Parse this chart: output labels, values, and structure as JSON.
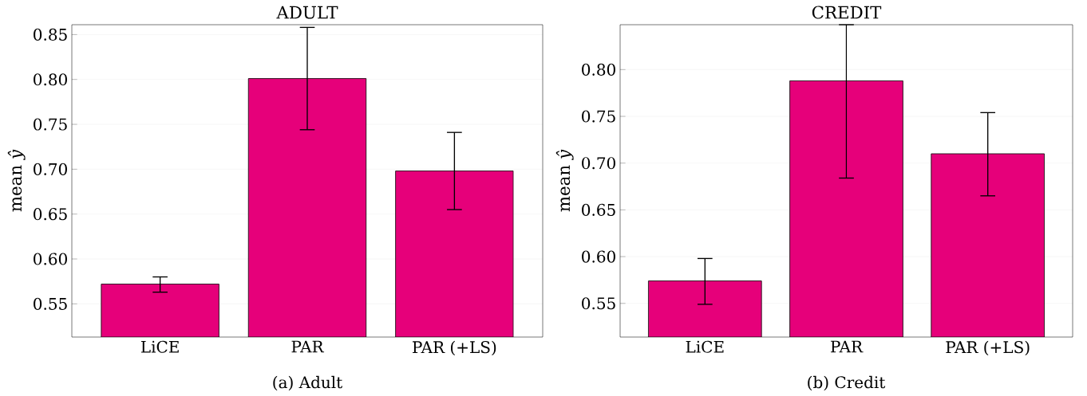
{
  "chart_data": [
    {
      "type": "bar",
      "title": "ADULT",
      "ylabel": "mean *ŷ*",
      "categories": [
        "LiCE",
        "PAR",
        "PAR (+LS)"
      ],
      "values": [
        0.572,
        0.801,
        0.698
      ],
      "errors": [
        [
          0.563,
          0.58
        ],
        [
          0.744,
          0.858
        ],
        [
          0.655,
          0.741
        ]
      ],
      "color": "#e6007a",
      "ylim": [
        0.513,
        0.861
      ],
      "yticks": [
        {
          "value": 0.55,
          "label": "0.55"
        },
        {
          "value": 0.6,
          "label": "0.60"
        },
        {
          "value": 0.65,
          "label": "0.65"
        },
        {
          "value": 0.7,
          "label": "0.70"
        },
        {
          "value": 0.75,
          "label": "0.75"
        },
        {
          "value": 0.8,
          "label": "0.80"
        },
        {
          "value": 0.85,
          "label": "0.85"
        }
      ],
      "grid": "y",
      "annotations": [
        "(a) Adult"
      ]
    },
    {
      "type": "bar",
      "title": "CREDIT",
      "ylabel": "mean *ŷ*",
      "categories": [
        "LiCE",
        "PAR",
        "PAR (+LS)"
      ],
      "values": [
        0.574,
        0.788,
        0.71
      ],
      "errors": [
        [
          0.549,
          0.598
        ],
        [
          0.684,
          0.848
        ],
        [
          0.665,
          0.754
        ]
      ],
      "color": "#e6007a",
      "ylim": [
        0.514,
        0.848
      ],
      "yticks": [
        {
          "value": 0.55,
          "label": "0.55"
        },
        {
          "value": 0.6,
          "label": "0.60"
        },
        {
          "value": 0.65,
          "label": "0.65"
        },
        {
          "value": 0.7,
          "label": "0.70"
        },
        {
          "value": 0.75,
          "label": "0.75"
        },
        {
          "value": 0.8,
          "label": "0.80"
        }
      ],
      "grid": "y",
      "annotations": [
        "(b) Credit"
      ]
    }
  ]
}
